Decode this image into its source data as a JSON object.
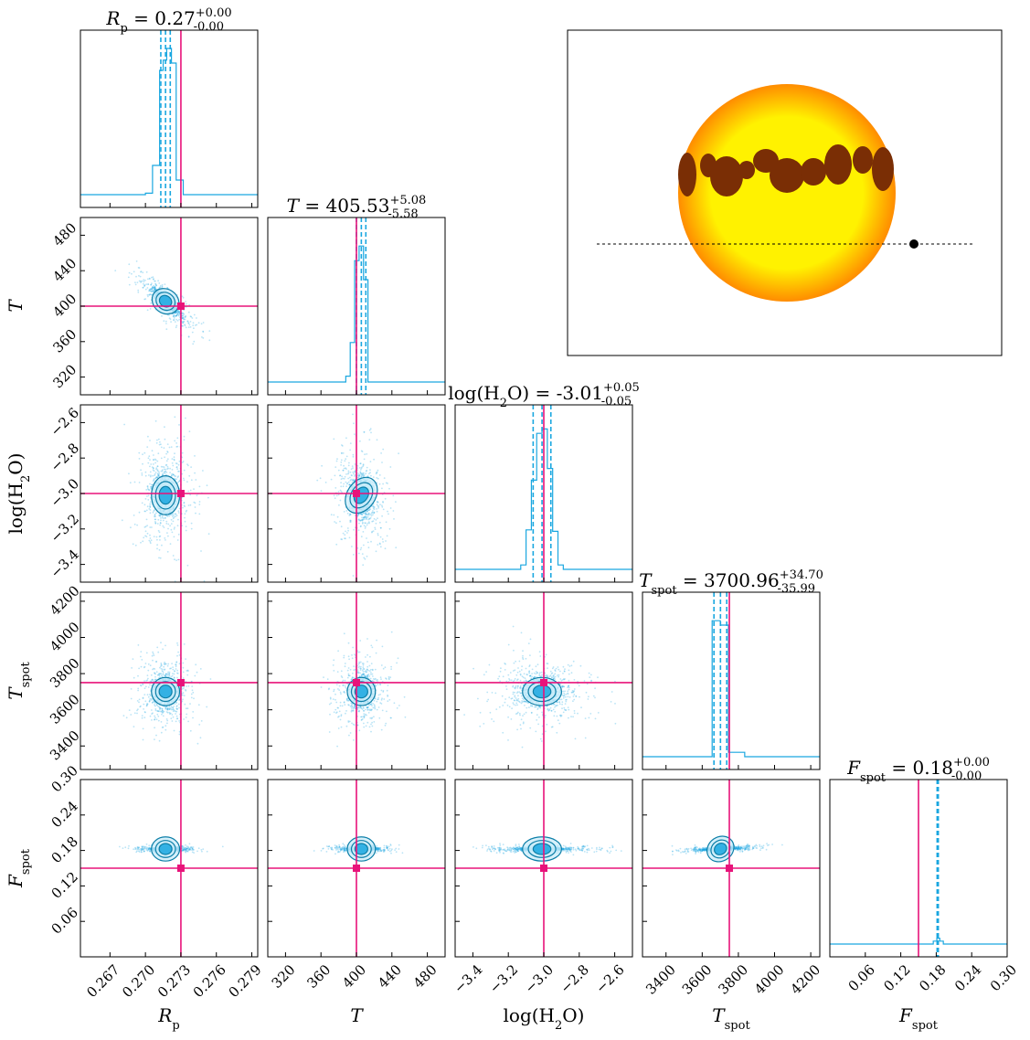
{
  "chart_data": {
    "type": "corner",
    "parameters": [
      {
        "key": "Rp",
        "label": "R_p",
        "title": "R_p = 0.27^{+0.00}_{-0.00}",
        "range": [
          0.2645,
          0.2795
        ],
        "ticks": [
          0.267,
          0.27,
          0.273,
          0.276,
          0.279
        ],
        "tick_labels": [
          "0.267",
          "0.270",
          "0.273",
          "0.276",
          "0.279"
        ],
        "truth": 0.273,
        "median": 0.2717,
        "q16": 0.2713,
        "q84": 0.2721,
        "hist": [
          {
            "x": 0.2645,
            "h": 0.0
          },
          {
            "x": 0.27,
            "h": 0.01
          },
          {
            "x": 0.2706,
            "h": 0.2
          },
          {
            "x": 0.2712,
            "h": 0.85
          },
          {
            "x": 0.2715,
            "h": 0.92
          },
          {
            "x": 0.2718,
            "h": 1.0
          },
          {
            "x": 0.2722,
            "h": 0.9
          },
          {
            "x": 0.2726,
            "h": 0.1
          },
          {
            "x": 0.2732,
            "h": 0.0
          },
          {
            "x": 0.2795,
            "h": 0.0
          }
        ]
      },
      {
        "key": "T",
        "label": "T",
        "title": "T = 405.53^{+5.08}_{-5.58}",
        "range": [
          300,
          500
        ],
        "ticks": [
          320,
          360,
          400,
          440,
          480
        ],
        "tick_labels": [
          "320",
          "360",
          "400",
          "440",
          "480"
        ],
        "truth": 400,
        "median": 405.53,
        "q16": 399.95,
        "q84": 410.61,
        "hist": [
          {
            "x": 300,
            "h": 0.0
          },
          {
            "x": 388,
            "h": 0.04
          },
          {
            "x": 393,
            "h": 0.27
          },
          {
            "x": 398,
            "h": 0.83
          },
          {
            "x": 403,
            "h": 0.93
          },
          {
            "x": 408,
            "h": 0.7
          },
          {
            "x": 413,
            "h": 0.0
          },
          {
            "x": 500,
            "h": 0.0
          }
        ]
      },
      {
        "key": "logH2O",
        "label": "log(H2O)",
        "title": "log(H2O) = -3.01^{+0.05}_{-0.05}",
        "range": [
          -3.5,
          -2.5
        ],
        "ticks": [
          -3.4,
          -3.2,
          -3.0,
          -2.8,
          -2.6
        ],
        "tick_labels": [
          "-3.4",
          "-3.2",
          "-3.0",
          "-2.8",
          "-2.6"
        ],
        "truth": -3.0,
        "median": -3.01,
        "q16": -3.06,
        "q84": -2.96,
        "hist": [
          {
            "x": -3.5,
            "h": 0.0
          },
          {
            "x": -3.13,
            "h": 0.03
          },
          {
            "x": -3.1,
            "h": 0.27
          },
          {
            "x": -3.07,
            "h": 0.61
          },
          {
            "x": -3.04,
            "h": 0.93
          },
          {
            "x": -3.01,
            "h": 0.96
          },
          {
            "x": -2.98,
            "h": 0.69
          },
          {
            "x": -2.95,
            "h": 0.26
          },
          {
            "x": -2.92,
            "h": 0.03
          },
          {
            "x": -2.89,
            "h": 0.0
          },
          {
            "x": -2.5,
            "h": 0.0
          }
        ]
      },
      {
        "key": "Tspot",
        "label": "T_spot",
        "title": "T_spot = 3700.96^{+34.70}_{-35.99}",
        "range": [
          3270,
          4250
        ],
        "ticks": [
          3400,
          3600,
          3800,
          4000,
          4200
        ],
        "tick_labels": [
          "3400",
          "3600",
          "3800",
          "4000",
          "4200"
        ],
        "truth": 3750,
        "median": 3700.96,
        "q16": 3664.97,
        "q84": 3735.66,
        "hist": [
          {
            "x": 3270,
            "h": 0.0
          },
          {
            "x": 3655,
            "h": 0.93
          },
          {
            "x": 3700,
            "h": 0.9
          },
          {
            "x": 3745,
            "h": 0.03
          },
          {
            "x": 3835,
            "h": 0.0
          },
          {
            "x": 4250,
            "h": 0.0
          }
        ]
      },
      {
        "key": "Fspot",
        "label": "F_spot",
        "title": "F_spot = 0.18^{+0.00}_{-0.00}",
        "range": [
          0.0,
          0.3
        ],
        "ticks": [
          0.06,
          0.12,
          0.18,
          0.24,
          0.3
        ],
        "tick_labels": [
          "0.06",
          "0.12",
          "0.18",
          "0.24",
          "0.30"
        ],
        "truth": 0.15,
        "median": 0.1825,
        "q16": 0.1815,
        "q84": 0.1835,
        "hist": [
          {
            "x": 0.0,
            "h": 0.0
          },
          {
            "x": 0.175,
            "h": 0.02
          },
          {
            "x": 0.181,
            "h": 0.04
          },
          {
            "x": 0.186,
            "h": 0.02
          },
          {
            "x": 0.192,
            "h": 0.0
          },
          {
            "x": 0.3,
            "h": 0.0
          }
        ]
      }
    ],
    "correlations": {
      "T|Rp": -0.85,
      "logH2O|Rp": 0.0,
      "logH2O|T": -0.2,
      "Tspot|Rp": 0.0,
      "Tspot|T": 0.0,
      "Tspot|logH2O": 0.0,
      "Fspot|Rp": 0.0,
      "Fspot|T": 0.0,
      "Fspot|logH2O": 0.0,
      "Fspot|Tspot": 0.5
    },
    "colors": {
      "posterior": "#1aa7e0",
      "truth": "#e8137a",
      "star_core": "#fff200",
      "star_limb": "#ff8c00",
      "spots": "#7a2e05",
      "planet": "#000000"
    },
    "inset": {
      "type": "stellar-disk",
      "transit_chord": "dashed"
    }
  }
}
